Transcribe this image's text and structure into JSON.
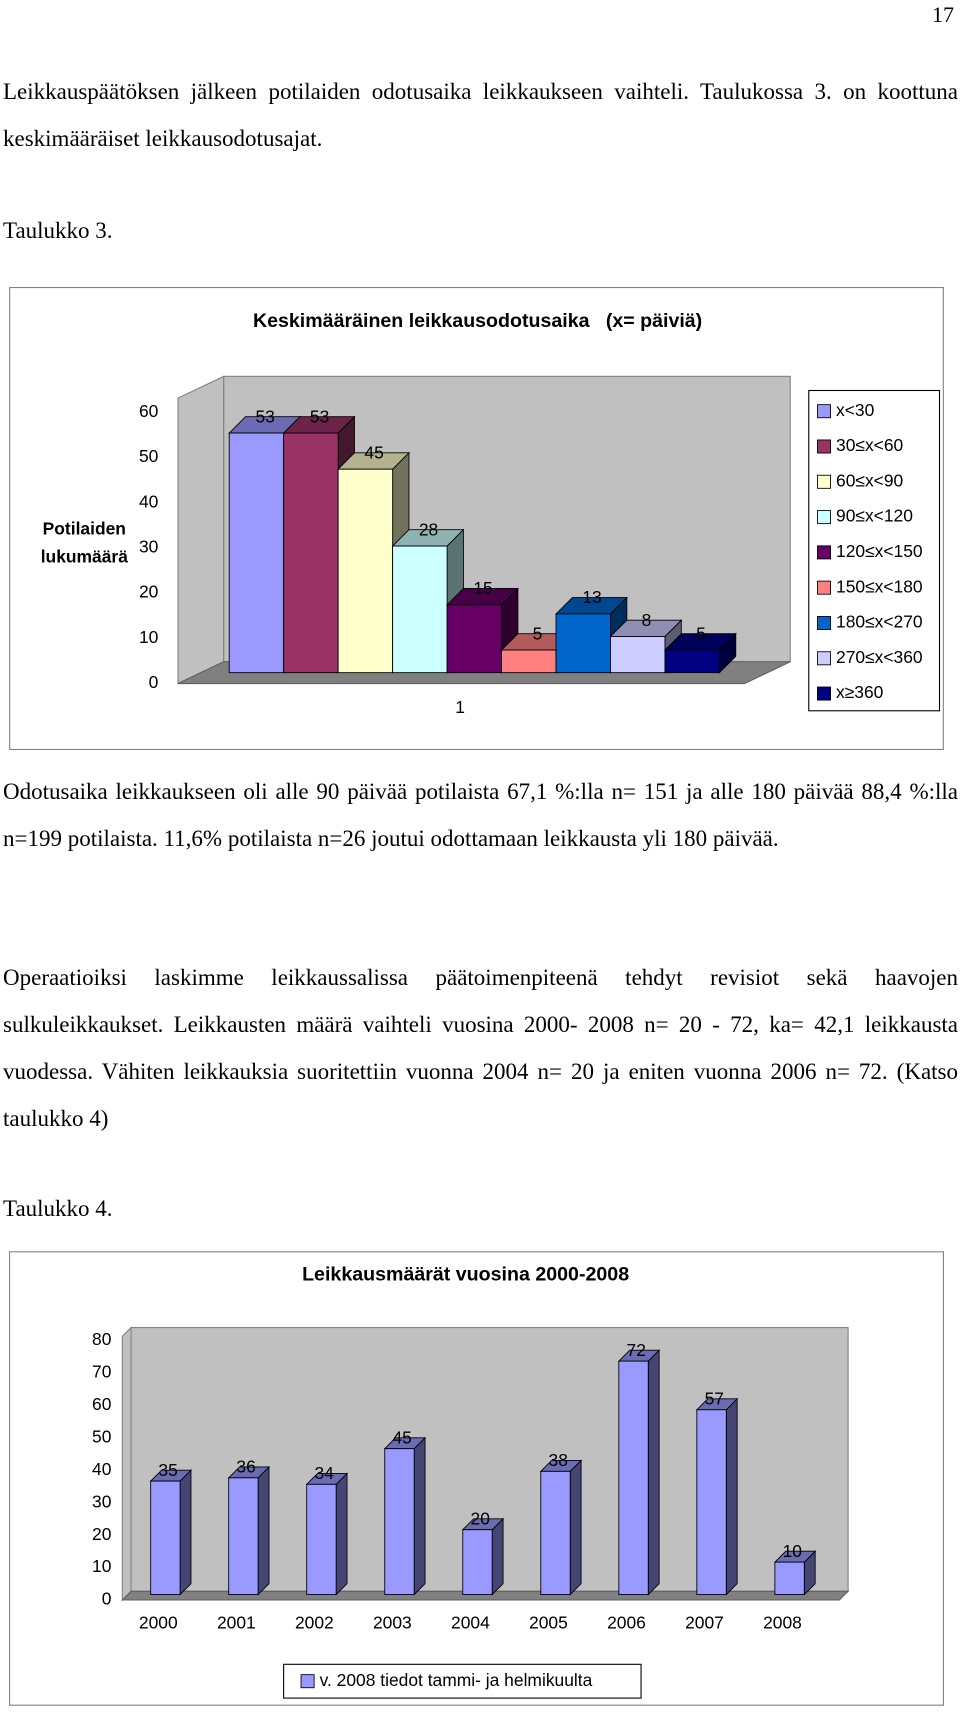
{
  "page_number": "17",
  "paragraphs": [
    "Leikkauspäätöksen jälkeen potilaiden odotusaika leikkaukseen vaihteli. Taulukossa 3. on koottuna keskimääräiset leikkausodotusajat.",
    "Odotusaika leikkaukseen oli alle 90 päivää potilaista 67,1 %:lla n= 151 ja alle 180 päivää 88,4 %:lla n=199 potilaista. 11,6% potilaista n=26 joutui odottamaan leikkausta yli 180 päivää.",
    "Operaatioiksi laskimme leikkaussalissa päätoimenpiteenä tehdyt revisiot sekä haavojen sulkuleikkaukset. Leikkausten määrä vaihteli vuosina 2000- 2008 n= 20 - 72, ka= 42,1 leikkausta vuodessa.  Vähiten leikkauksia suoritettiin vuonna 2004 n= 20 ja eniten vuonna 2006 n= 72. (Katso taulukko 4)"
  ],
  "captions": [
    "Taulukko 3.",
    "Taulukko 4."
  ],
  "chart_data": [
    {
      "type": "bar",
      "title": "Keskimääräinen leikkausodotusaika   (x= päiviä)",
      "y_label": "Potilaiden lukumäärä",
      "categories": [
        "1"
      ],
      "series": [
        {
          "name": "x<30",
          "color": "#9999ff",
          "values": [
            53
          ]
        },
        {
          "name": "30≤x<60",
          "color": "#993366",
          "values": [
            53
          ]
        },
        {
          "name": "60≤x<90",
          "color": "#ffffcc",
          "values": [
            45
          ]
        },
        {
          "name": "90≤x<120",
          "color": "#ccffff",
          "values": [
            28
          ]
        },
        {
          "name": "120≤x<150",
          "color": "#660066",
          "values": [
            15
          ]
        },
        {
          "name": "150≤x<180",
          "color": "#ff8080",
          "values": [
            5
          ]
        },
        {
          "name": "180≤x<270",
          "color": "#0066cc",
          "values": [
            13
          ]
        },
        {
          "name": "270≤x<360",
          "color": "#ccccff",
          "values": [
            8
          ]
        },
        {
          "name": "x≥360",
          "color": "#000080",
          "values": [
            5
          ]
        }
      ],
      "ylim": [
        0,
        60
      ],
      "yticks": [
        0,
        10,
        20,
        30,
        40,
        50,
        60
      ],
      "legend": "right"
    },
    {
      "type": "bar",
      "title": "Leikkausmäärät vuosina 2000-2008",
      "categories": [
        "2000",
        "2001",
        "2002",
        "2003",
        "2004",
        "2005",
        "2006",
        "2007",
        "2008"
      ],
      "series": [
        {
          "name": "v. 2008 tiedot tammi- ja helmikuulta",
          "color": "#9999ff",
          "values": [
            35,
            36,
            34,
            45,
            20,
            38,
            72,
            57,
            10
          ]
        }
      ],
      "ylim": [
        0,
        80
      ],
      "yticks": [
        0,
        10,
        20,
        30,
        40,
        50,
        60,
        70,
        80
      ],
      "legend": "bottom"
    }
  ]
}
